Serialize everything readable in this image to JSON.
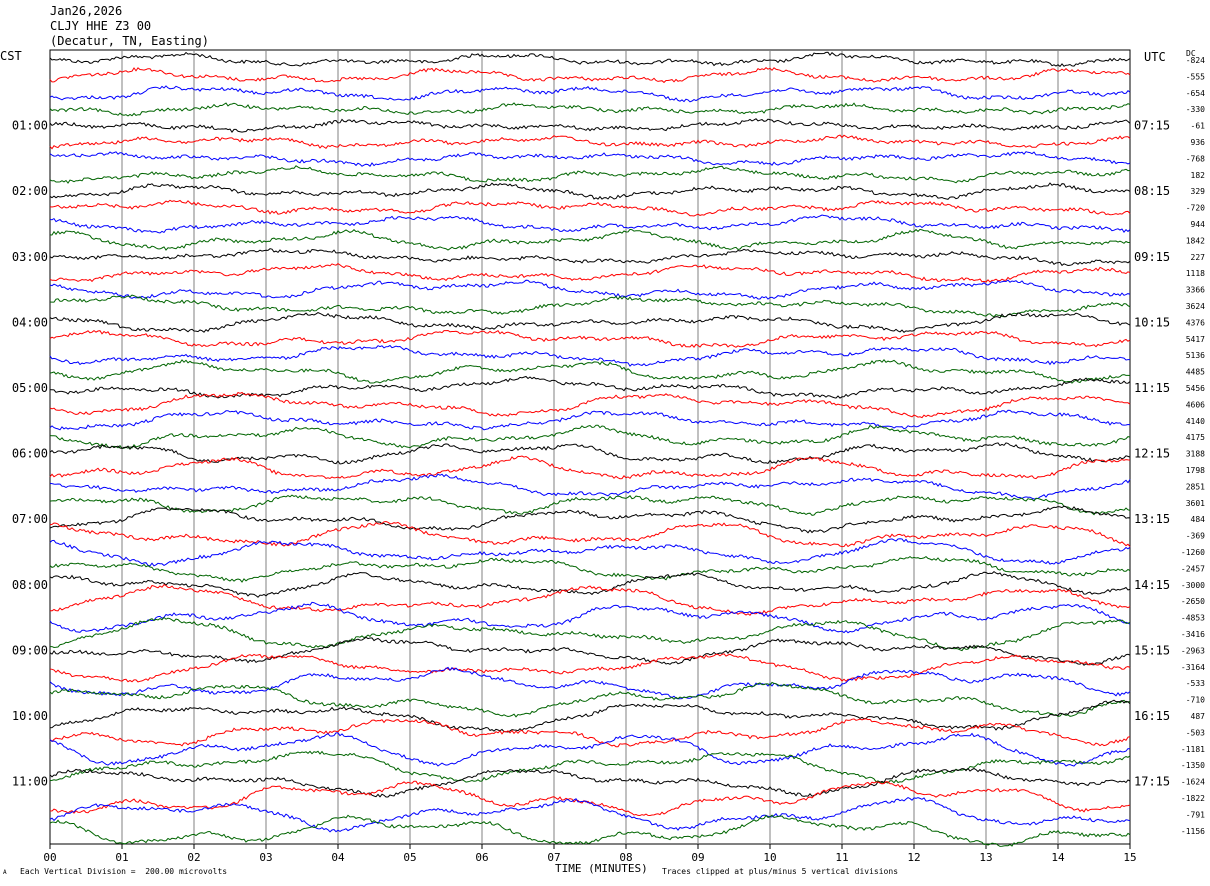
{
  "header": {
    "date": "Jan26,2026",
    "station": "CLJY HHE Z3 00",
    "location": "(Decatur, TN, Easting)"
  },
  "left_zone_label": "CST",
  "right_zone_label": "UTC",
  "dc_header": "DC",
  "footer": {
    "scale_note": "Each Vertical Division =  200.00 microvolts",
    "x_title": "TIME (MINUTES)",
    "clip_note": "Traces clipped at plus/minus 5 vertical divisions",
    "corner_mark": "A"
  },
  "colors": {
    "cycle": [
      "#000000",
      "#ff0000",
      "#0000ff",
      "#006400"
    ],
    "grid": "#808080"
  },
  "chart_data": {
    "type": "line",
    "title": "CLJY HHE Z3 00",
    "xlabel": "TIME (MINUTES)",
    "ylabel": "",
    "xlim": [
      0,
      15
    ],
    "x_ticks": [
      "00",
      "01",
      "02",
      "03",
      "04",
      "05",
      "06",
      "07",
      "08",
      "09",
      "10",
      "11",
      "12",
      "13",
      "14",
      "15"
    ],
    "left_time_labels": [
      {
        "trace": 4,
        "label": "01:00"
      },
      {
        "trace": 8,
        "label": "02:00"
      },
      {
        "trace": 12,
        "label": "03:00"
      },
      {
        "trace": 16,
        "label": "04:00"
      },
      {
        "trace": 20,
        "label": "05:00"
      },
      {
        "trace": 24,
        "label": "06:00"
      },
      {
        "trace": 28,
        "label": "07:00"
      },
      {
        "trace": 32,
        "label": "08:00"
      },
      {
        "trace": 36,
        "label": "09:00"
      },
      {
        "trace": 40,
        "label": "10:00"
      },
      {
        "trace": 44,
        "label": "11:00"
      }
    ],
    "right_time_labels": [
      {
        "trace": 4,
        "label": "07:15"
      },
      {
        "trace": 8,
        "label": "08:15"
      },
      {
        "trace": 12,
        "label": "09:15"
      },
      {
        "trace": 16,
        "label": "10:15"
      },
      {
        "trace": 20,
        "label": "11:15"
      },
      {
        "trace": 24,
        "label": "12:15"
      },
      {
        "trace": 28,
        "label": "13:15"
      },
      {
        "trace": 32,
        "label": "14:15"
      },
      {
        "trace": 36,
        "label": "15:15"
      },
      {
        "trace": 40,
        "label": "16:15"
      },
      {
        "trace": 44,
        "label": "17:15"
      }
    ],
    "dc_offsets": [
      "-824",
      "-555",
      "-654",
      "-330",
      "-61",
      "936",
      "-768",
      "182",
      "329",
      "-720",
      "944",
      "1842",
      "227",
      "1118",
      "3366",
      "3624",
      "4376",
      "5417",
      "5136",
      "4485",
      "5456",
      "4606",
      "4140",
      "4175",
      "3188",
      "1798",
      "2851",
      "3601",
      "484",
      "-369",
      "-1260",
      "-2457",
      "-3000",
      "-2650",
      "-4853",
      "-3416",
      "-2963",
      "-3164",
      "-533",
      "-710",
      "487",
      "-503",
      "-1181",
      "-1350",
      "-1624",
      "-1822",
      "-791",
      "-1156"
    ],
    "trace_count": 48,
    "grid": true
  }
}
